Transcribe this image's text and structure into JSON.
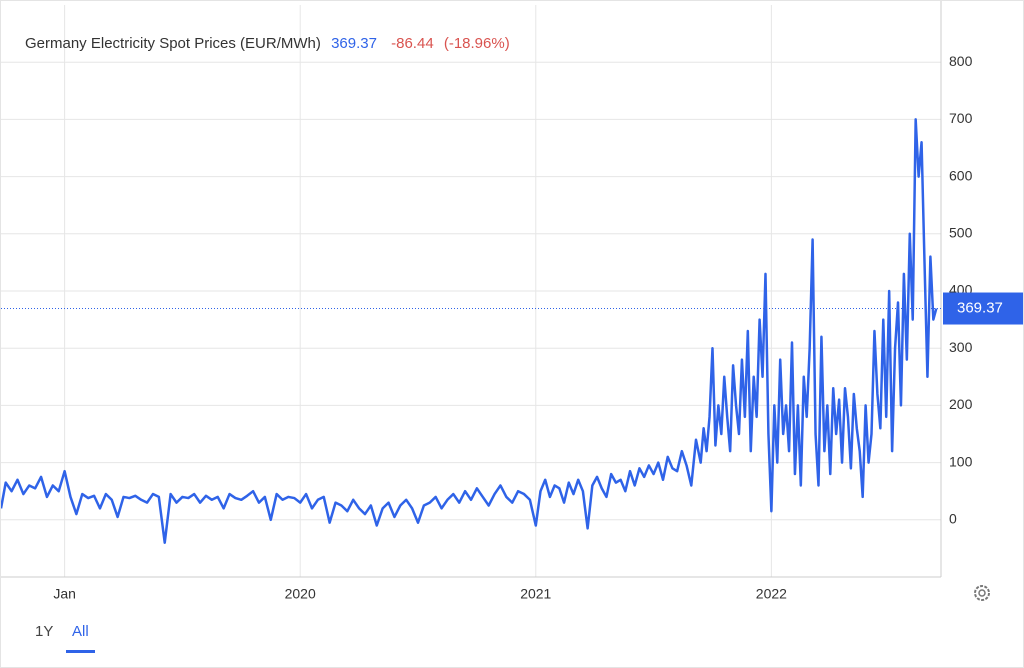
{
  "chart_data": {
    "type": "line",
    "title": "Germany Electricity Spot Prices (EUR/MWh)",
    "last_value": 369.37,
    "change": -86.44,
    "change_pct": {
      "value": -18.96,
      "label": "(-18.96%)"
    },
    "color": "#2f63e8",
    "xlim": [
      2018.73,
      2022.72
    ],
    "xticks": [
      {
        "value": 2019,
        "label": "Jan"
      },
      2020,
      2021,
      2022
    ],
    "ylim": [
      -100,
      900
    ],
    "yticks": [
      0,
      100,
      200,
      300,
      400,
      500,
      600,
      700,
      800
    ],
    "grid": true,
    "range_buttons": [
      "1Y",
      "All"
    ],
    "active_range_index": 1,
    "x": [
      2018.73,
      2018.75,
      2018.775,
      2018.8,
      2018.825,
      2018.85,
      2018.875,
      2018.9,
      2018.925,
      2018.95,
      2018.975,
      2019,
      2019.025,
      2019.05,
      2019.075,
      2019.1,
      2019.125,
      2019.15,
      2019.175,
      2019.2,
      2019.225,
      2019.25,
      2019.275,
      2019.3,
      2019.325,
      2019.35,
      2019.375,
      2019.4,
      2019.425,
      2019.45,
      2019.475,
      2019.5,
      2019.525,
      2019.55,
      2019.575,
      2019.6,
      2019.625,
      2019.65,
      2019.675,
      2019.7,
      2019.725,
      2019.75,
      2019.775,
      2019.8,
      2019.825,
      2019.85,
      2019.875,
      2019.9,
      2019.925,
      2019.95,
      2019.975,
      2020,
      2020.025,
      2020.05,
      2020.075,
      2020.1,
      2020.125,
      2020.15,
      2020.175,
      2020.2,
      2020.225,
      2020.25,
      2020.275,
      2020.3,
      2020.325,
      2020.35,
      2020.375,
      2020.4,
      2020.425,
      2020.45,
      2020.475,
      2020.5,
      2020.525,
      2020.55,
      2020.575,
      2020.6,
      2020.625,
      2020.65,
      2020.675,
      2020.7,
      2020.725,
      2020.75,
      2020.775,
      2020.8,
      2020.825,
      2020.85,
      2020.875,
      2020.9,
      2020.925,
      2020.95,
      2020.975,
      2021,
      2021.02,
      2021.04,
      2021.06,
      2021.08,
      2021.1,
      2021.12,
      2021.14,
      2021.16,
      2021.18,
      2021.2,
      2021.22,
      2021.24,
      2021.26,
      2021.28,
      2021.3,
      2021.32,
      2021.34,
      2021.36,
      2021.38,
      2021.4,
      2021.42,
      2021.44,
      2021.46,
      2021.48,
      2021.5,
      2021.52,
      2021.54,
      2021.56,
      2021.58,
      2021.6,
      2021.62,
      2021.64,
      2021.66,
      2021.68,
      2021.7,
      2021.7125,
      2021.725,
      2021.7375,
      2021.75,
      2021.7625,
      2021.775,
      2021.7875,
      2021.8,
      2021.8125,
      2021.825,
      2021.8375,
      2021.85,
      2021.8625,
      2021.875,
      2021.8875,
      2021.9,
      2021.9125,
      2021.925,
      2021.9375,
      2021.95,
      2021.9625,
      2021.975,
      2021.9875,
      2022,
      2022.0125,
      2022.025,
      2022.0375,
      2022.05,
      2022.0625,
      2022.075,
      2022.0875,
      2022.1,
      2022.1125,
      2022.125,
      2022.1375,
      2022.15,
      2022.1625,
      2022.175,
      2022.1875,
      2022.2,
      2022.2125,
      2022.225,
      2022.2375,
      2022.25,
      2022.2625,
      2022.275,
      2022.2875,
      2022.3,
      2022.3125,
      2022.325,
      2022.3375,
      2022.35,
      2022.3625,
      2022.375,
      2022.3875,
      2022.4,
      2022.4125,
      2022.425,
      2022.4375,
      2022.45,
      2022.4625,
      2022.475,
      2022.4875,
      2022.5,
      2022.5125,
      2022.525,
      2022.5375,
      2022.55,
      2022.5625,
      2022.575,
      2022.5875,
      2022.6,
      2022.6125,
      2022.625,
      2022.6375,
      2022.65,
      2022.6625,
      2022.675,
      2022.6875,
      2022.7
    ],
    "values": [
      20,
      65,
      50,
      70,
      45,
      60,
      55,
      75,
      40,
      60,
      50,
      85,
      40,
      10,
      45,
      38,
      42,
      20,
      45,
      35,
      5,
      40,
      38,
      42,
      35,
      30,
      45,
      40,
      -40,
      45,
      30,
      40,
      38,
      45,
      30,
      42,
      35,
      40,
      20,
      45,
      38,
      35,
      42,
      50,
      30,
      40,
      0,
      45,
      35,
      40,
      38,
      30,
      45,
      20,
      35,
      40,
      -5,
      30,
      25,
      15,
      35,
      20,
      10,
      25,
      -10,
      20,
      30,
      5,
      25,
      35,
      20,
      -5,
      25,
      30,
      40,
      20,
      35,
      45,
      30,
      50,
      35,
      55,
      40,
      25,
      45,
      60,
      40,
      30,
      50,
      45,
      35,
      -10,
      50,
      70,
      40,
      60,
      55,
      30,
      65,
      45,
      70,
      50,
      -15,
      60,
      75,
      55,
      40,
      80,
      65,
      70,
      50,
      85,
      60,
      90,
      75,
      95,
      80,
      100,
      70,
      110,
      90,
      85,
      120,
      95,
      60,
      140,
      100,
      160,
      120,
      180,
      300,
      130,
      200,
      150,
      250,
      180,
      120,
      270,
      200,
      150,
      280,
      180,
      330,
      120,
      250,
      180,
      350,
      250,
      430,
      150,
      15,
      200,
      100,
      280,
      150,
      200,
      120,
      310,
      80,
      200,
      60,
      250,
      180,
      300,
      490,
      150,
      60,
      320,
      120,
      200,
      80,
      230,
      150,
      210,
      100,
      230,
      180,
      90,
      220,
      160,
      120,
      40,
      200,
      100,
      150,
      330,
      220,
      160,
      350,
      180,
      400,
      120,
      300,
      380,
      200,
      430,
      280,
      500,
      350,
      700,
      600,
      660,
      450,
      250,
      460,
      350,
      369.37
    ]
  }
}
